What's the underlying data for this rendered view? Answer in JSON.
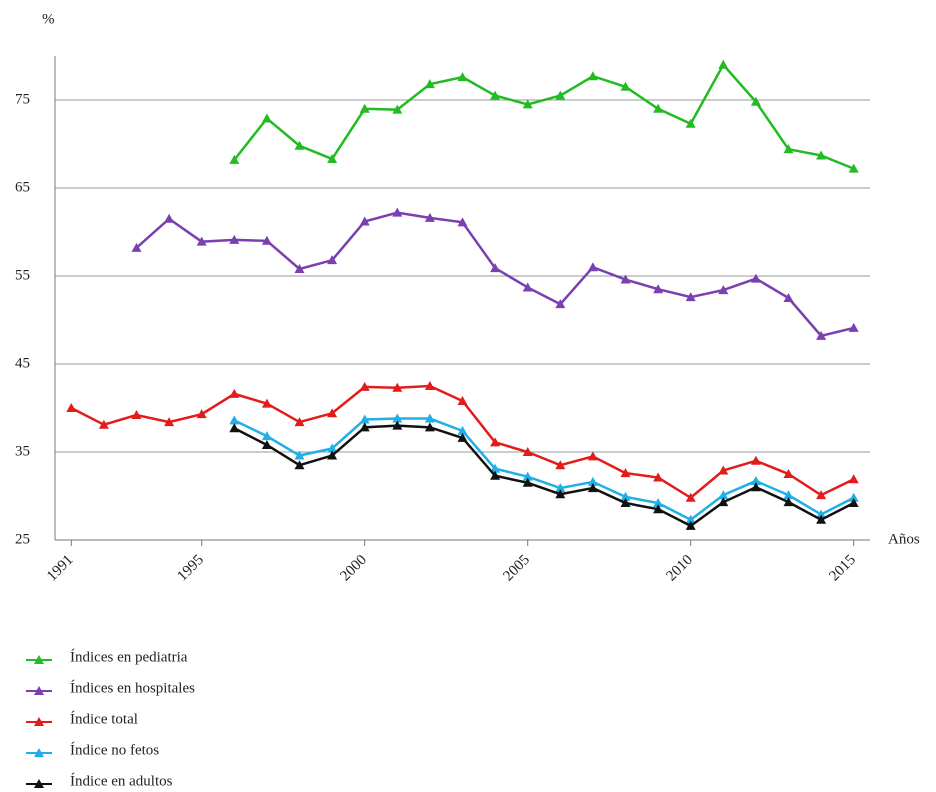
{
  "chart_data": {
    "type": "line",
    "y_label": "%",
    "x_label": "Años",
    "x": [
      1991,
      1992,
      1993,
      1994,
      1995,
      1996,
      1997,
      1998,
      1999,
      2000,
      2001,
      2002,
      2003,
      2004,
      2005,
      2006,
      2007,
      2008,
      2009,
      2010,
      2011,
      2012,
      2013,
      2014,
      2015
    ],
    "series": [
      {
        "name": "Índices en pediatria",
        "color": "#22bb22",
        "values": [
          null,
          null,
          null,
          null,
          null,
          68.2,
          72.9,
          69.8,
          68.3,
          74.0,
          73.9,
          76.8,
          77.6,
          75.5,
          74.5,
          75.5,
          77.7,
          76.5,
          74.0,
          72.3,
          79.0,
          74.8,
          69.4,
          68.7,
          67.2
        ]
      },
      {
        "name": "Índices en hospitales",
        "color": "#7a3fb0",
        "values": [
          null,
          null,
          58.2,
          61.5,
          58.9,
          59.1,
          59.0,
          55.8,
          56.8,
          61.2,
          62.2,
          61.6,
          61.1,
          55.9,
          53.7,
          51.8,
          56.0,
          54.6,
          53.5,
          52.6,
          53.4,
          54.7,
          52.5,
          48.2,
          49.1
        ]
      },
      {
        "name": "Índice total",
        "color": "#e21b1b",
        "values": [
          40.0,
          38.1,
          39.2,
          38.4,
          39.3,
          41.6,
          40.5,
          38.4,
          39.4,
          42.4,
          42.3,
          42.5,
          40.8,
          36.1,
          35.0,
          33.5,
          34.5,
          32.6,
          32.1,
          29.8,
          32.9,
          34.0,
          32.5,
          30.1,
          31.9
        ]
      },
      {
        "name": "Índice no fetos",
        "color": "#1fb0e6",
        "values": [
          null,
          null,
          null,
          null,
          null,
          38.6,
          36.8,
          34.6,
          35.4,
          38.7,
          38.8,
          38.8,
          37.4,
          33.1,
          32.2,
          30.9,
          31.6,
          29.9,
          29.2,
          27.3,
          30.1,
          31.7,
          30.1,
          27.9,
          29.8
        ]
      },
      {
        "name": "Índice en adultos",
        "color": "#111111",
        "values": [
          null,
          null,
          null,
          null,
          null,
          37.7,
          35.8,
          33.5,
          34.6,
          37.8,
          38.0,
          37.8,
          36.6,
          32.3,
          31.5,
          30.2,
          30.9,
          29.2,
          28.5,
          26.6,
          29.3,
          31.0,
          29.3,
          27.3,
          29.2
        ]
      }
    ],
    "xlim": [
      1990.5,
      2015.5
    ],
    "xticks": [
      1991,
      1995,
      2000,
      2005,
      2010,
      2015
    ],
    "ylim": [
      25,
      80
    ],
    "yticks": [
      25,
      35,
      45,
      55,
      65,
      75
    ],
    "grid": true
  }
}
